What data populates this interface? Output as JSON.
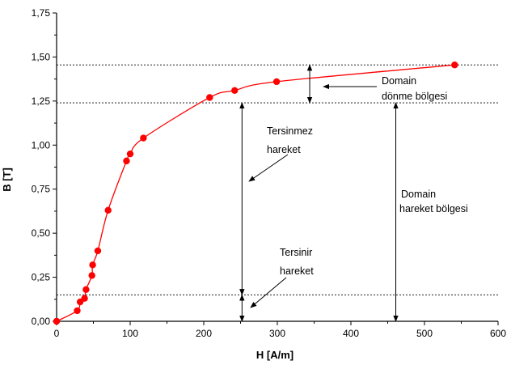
{
  "chart_data": {
    "type": "scatter",
    "xlabel": "H [A/m]",
    "ylabel": "B [T]",
    "xlim": [
      0,
      600
    ],
    "ylim": [
      0,
      1.75
    ],
    "x_ticks": [
      "0",
      "100",
      "200",
      "300",
      "400",
      "500",
      "600"
    ],
    "y_ticks": [
      "0,00",
      "0,25",
      "0,50",
      "0,75",
      "1,00",
      "1,25",
      "1,50",
      "1,75"
    ],
    "grid": false,
    "legend": "none",
    "series": [
      {
        "color": "#ff0000",
        "points": [
          {
            "x": 0,
            "y": 0.0
          },
          {
            "x": 28,
            "y": 0.06
          },
          {
            "x": 32,
            "y": 0.11
          },
          {
            "x": 38,
            "y": 0.13
          },
          {
            "x": 40,
            "y": 0.18
          },
          {
            "x": 48,
            "y": 0.26
          },
          {
            "x": 49,
            "y": 0.32
          },
          {
            "x": 56,
            "y": 0.4
          },
          {
            "x": 70,
            "y": 0.63
          },
          {
            "x": 95,
            "y": 0.91
          },
          {
            "x": 100,
            "y": 0.95
          },
          {
            "x": 118,
            "y": 1.04
          },
          {
            "x": 208,
            "y": 1.27
          },
          {
            "x": 242,
            "y": 1.31
          },
          {
            "x": 299,
            "y": 1.36
          },
          {
            "x": 541,
            "y": 1.455
          }
        ]
      }
    ],
    "reference_lines_y": [
      1.455,
      1.24,
      0.15
    ],
    "annotations": {
      "tersinmez": [
        "Tersinmez",
        "hareket"
      ],
      "tersinir": [
        "Tersinir",
        "hareket"
      ],
      "domain_donme": [
        "Domain",
        "dönme bölgesi"
      ],
      "domain_hareket": [
        "Domain",
        "hareket bölgesi"
      ]
    },
    "vertical_arrows": [
      {
        "x": 252,
        "y_from": 1.24,
        "y_to": 0.15
      },
      {
        "x": 252,
        "y_from": 0.15,
        "y_to": 0.0
      },
      {
        "x": 344,
        "y_from": 1.455,
        "y_to": 1.24
      },
      {
        "x": 461,
        "y_from": 1.24,
        "y_to": 0.0
      }
    ],
    "colors": {
      "curve": "#ff0000",
      "points": "#ff0000",
      "axes": "#000000"
    }
  }
}
